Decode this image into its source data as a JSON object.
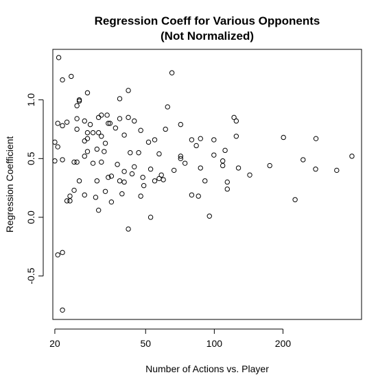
{
  "chart_data": {
    "type": "scatter",
    "title": "Regression Coeff for Various Opponents",
    "subtitle": "(Not Normalized)",
    "xlabel": "Number of Actions vs. Player",
    "ylabel": "Regression Coefficient",
    "x_scale": "log",
    "grid": false,
    "x_ticks": [
      20,
      50,
      100,
      200
    ],
    "y_ticks": [
      -0.5,
      0.0,
      0.5,
      1.0
    ],
    "x_tick_labels": [
      "20",
      "50",
      "100",
      "200"
    ],
    "y_tick_labels": [
      "-0.5",
      "0.0",
      "0.5",
      "1.0"
    ],
    "xlim": [
      19.6,
      442
    ],
    "ylim": [
      -0.87,
      1.43
    ],
    "points": [
      [
        20.0,
        0.48
      ],
      [
        20.0,
        0.64
      ],
      [
        20.6,
        0.6
      ],
      [
        20.6,
        0.8
      ],
      [
        20.8,
        1.36
      ],
      [
        20.6,
        -0.32
      ],
      [
        21.6,
        -0.3
      ],
      [
        21.6,
        -0.79
      ],
      [
        21.6,
        0.78
      ],
      [
        21.6,
        1.17
      ],
      [
        21.6,
        0.49
      ],
      [
        22.6,
        0.14
      ],
      [
        22.6,
        0.81
      ],
      [
        23.3,
        0.14
      ],
      [
        23.3,
        0.18
      ],
      [
        23.6,
        1.2
      ],
      [
        24.3,
        0.47
      ],
      [
        24.3,
        0.23
      ],
      [
        25.0,
        0.47
      ],
      [
        25.0,
        0.84
      ],
      [
        25.0,
        0.75
      ],
      [
        25.0,
        0.95
      ],
      [
        25.6,
        1.0
      ],
      [
        25.6,
        0.99
      ],
      [
        25.6,
        0.31
      ],
      [
        27.0,
        0.52
      ],
      [
        27.0,
        0.65
      ],
      [
        27.0,
        0.82
      ],
      [
        27.0,
        0.19
      ],
      [
        27.8,
        0.56
      ],
      [
        27.8,
        1.06
      ],
      [
        27.8,
        0.67
      ],
      [
        27.8,
        0.72
      ],
      [
        28.6,
        0.79
      ],
      [
        29.4,
        0.72
      ],
      [
        29.4,
        0.46
      ],
      [
        30.2,
        0.17
      ],
      [
        30.6,
        0.31
      ],
      [
        30.6,
        0.58
      ],
      [
        31.1,
        0.85
      ],
      [
        31.1,
        0.72
      ],
      [
        31.1,
        0.06
      ],
      [
        32.0,
        0.87
      ],
      [
        32.0,
        0.69
      ],
      [
        32.0,
        0.47
      ],
      [
        32.9,
        0.56
      ],
      [
        33.3,
        0.63
      ],
      [
        33.3,
        0.22
      ],
      [
        33.9,
        0.87
      ],
      [
        34.3,
        0.8
      ],
      [
        34.3,
        0.34
      ],
      [
        34.9,
        0.8
      ],
      [
        35.4,
        0.35
      ],
      [
        35.4,
        0.13
      ],
      [
        36.9,
        0.76
      ],
      [
        37.6,
        0.45
      ],
      [
        38.5,
        1.01
      ],
      [
        38.5,
        0.84
      ],
      [
        38.5,
        0.31
      ],
      [
        39.4,
        0.2
      ],
      [
        40.3,
        0.3
      ],
      [
        40.3,
        0.39
      ],
      [
        40.3,
        0.7
      ],
      [
        42.0,
        1.08
      ],
      [
        42.0,
        0.85
      ],
      [
        42.0,
        -0.1
      ],
      [
        42.8,
        0.55
      ],
      [
        43.6,
        0.37
      ],
      [
        44.6,
        0.43
      ],
      [
        44.6,
        0.82
      ],
      [
        46.6,
        0.55
      ],
      [
        47.6,
        0.74
      ],
      [
        47.6,
        0.18
      ],
      [
        48.6,
        0.34
      ],
      [
        49.1,
        0.27
      ],
      [
        51.5,
        0.64
      ],
      [
        52.6,
        0.0
      ],
      [
        52.6,
        0.41
      ],
      [
        54.8,
        0.31
      ],
      [
        54.8,
        0.66
      ],
      [
        57.3,
        0.54
      ],
      [
        57.3,
        0.33
      ],
      [
        58.6,
        0.36
      ],
      [
        59.8,
        0.32
      ],
      [
        61.1,
        0.75
      ],
      [
        62.4,
        0.94
      ],
      [
        65.2,
        1.23
      ],
      [
        66.6,
        0.4
      ],
      [
        71.2,
        0.79
      ],
      [
        71.2,
        0.52
      ],
      [
        71.2,
        0.5
      ],
      [
        74.4,
        0.46
      ],
      [
        79.6,
        0.19
      ],
      [
        79.6,
        0.66
      ],
      [
        83.4,
        0.61
      ],
      [
        85.2,
        0.18
      ],
      [
        87.0,
        0.67
      ],
      [
        87.0,
        0.42
      ],
      [
        91.0,
        0.31
      ],
      [
        95.2,
        0.01
      ],
      [
        99.6,
        0.66
      ],
      [
        99.6,
        0.53
      ],
      [
        108.9,
        0.48
      ],
      [
        108.9,
        0.44
      ],
      [
        111.5,
        0.57
      ],
      [
        114.0,
        0.3
      ],
      [
        114.0,
        0.24
      ],
      [
        122.0,
        0.85
      ],
      [
        124.8,
        0.69
      ],
      [
        124.8,
        0.82
      ],
      [
        127.6,
        0.42
      ],
      [
        143.0,
        0.36
      ],
      [
        175.0,
        0.44
      ],
      [
        201.0,
        0.68
      ],
      [
        226.0,
        0.15
      ],
      [
        245.0,
        0.49
      ],
      [
        278.0,
        0.41
      ],
      [
        279.0,
        0.67
      ],
      [
        344.0,
        0.4
      ],
      [
        401.0,
        0.52
      ]
    ]
  }
}
